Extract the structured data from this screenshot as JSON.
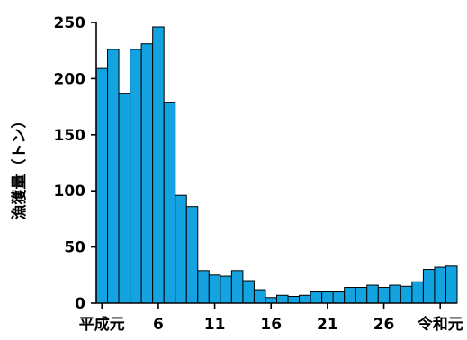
{
  "chart_data": {
    "type": "bar",
    "title": "",
    "xlabel": "",
    "ylabel": "漁獲量（トン）",
    "ylim": [
      0,
      250
    ],
    "yticks": [
      0,
      50,
      100,
      150,
      200,
      250
    ],
    "grid": false,
    "bar_color": "#12a3e0",
    "x_tick_labels": [
      {
        "index": 0,
        "label": "平成元"
      },
      {
        "index": 5,
        "label": "6"
      },
      {
        "index": 10,
        "label": "11"
      },
      {
        "index": 15,
        "label": "16"
      },
      {
        "index": 20,
        "label": "21"
      },
      {
        "index": 25,
        "label": "26"
      },
      {
        "index": 30,
        "label": "令和元"
      }
    ],
    "values": [
      209,
      226,
      187,
      226,
      231,
      246,
      179,
      96,
      86,
      29,
      25,
      24,
      29,
      20,
      12,
      5,
      7,
      6,
      7,
      10,
      10,
      10,
      14,
      14,
      16,
      14,
      16,
      15,
      19,
      30,
      32,
      33
    ]
  }
}
